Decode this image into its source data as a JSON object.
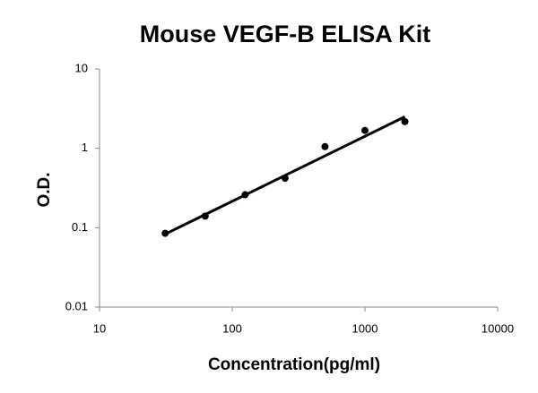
{
  "chart_data": {
    "type": "scatter",
    "title": "Mouse VEGF-B ELISA Kit",
    "x_label": "Concentration(pg/ml)",
    "y_label": "O.D.",
    "xscale": "log",
    "yscale": "log",
    "xlim": [
      10,
      10000
    ],
    "ylim": [
      0.01,
      10
    ],
    "xticks": [
      10,
      100,
      1000,
      10000
    ],
    "yticks": [
      0.01,
      0.1,
      1,
      10
    ],
    "series": [
      {
        "color": "#000000",
        "x": [
          31.25,
          62.5,
          125,
          250,
          500,
          1000,
          2000
        ],
        "values": [
          0.085,
          0.14,
          0.26,
          0.42,
          1.05,
          1.68,
          2.17
        ]
      }
    ],
    "trendline": {
      "color": "#000000",
      "x": [
        31.25,
        2000
      ],
      "values": [
        0.083,
        2.5
      ]
    }
  }
}
